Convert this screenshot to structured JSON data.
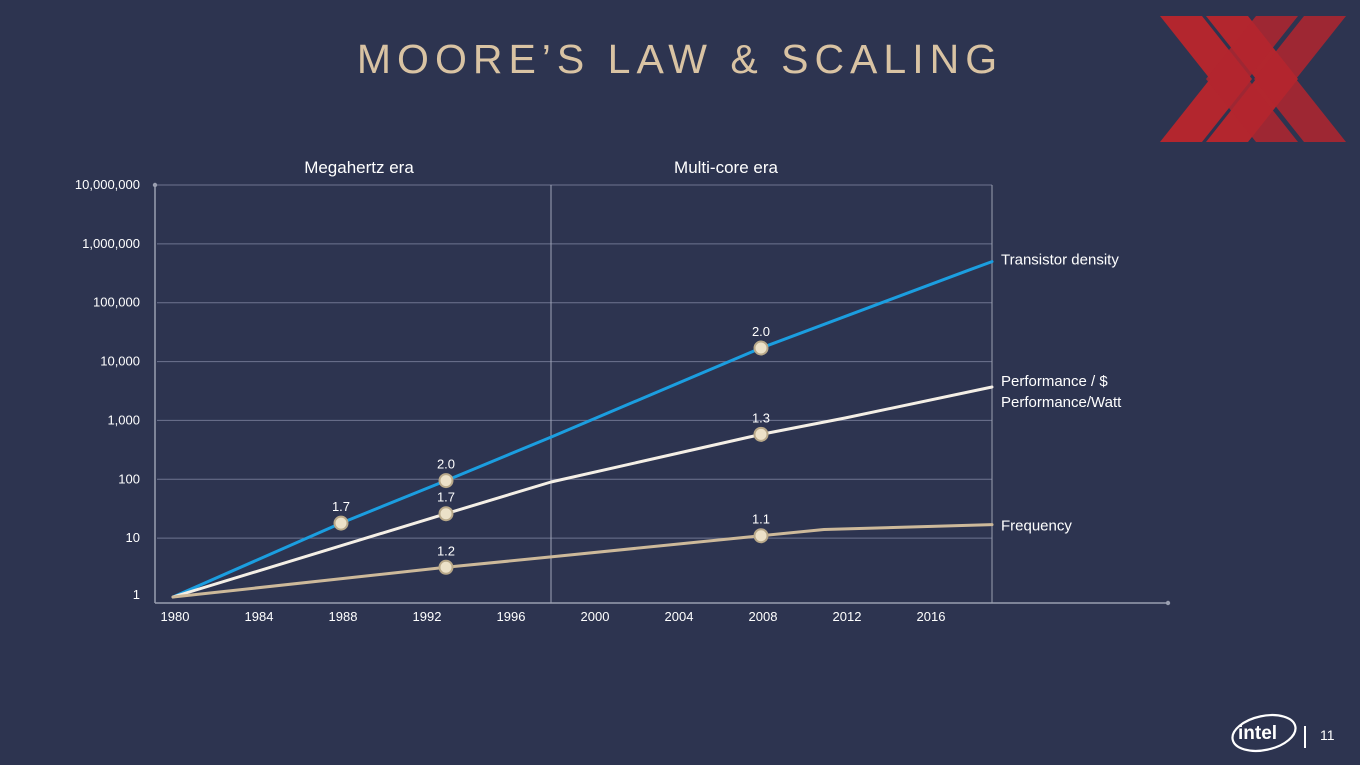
{
  "slide": {
    "title": "MOORE’S LAW & SCALING",
    "page_number": "11",
    "logo_text": "intel"
  },
  "colors": {
    "background": "#2d3450",
    "title": "#d9c3a3",
    "transistor_density": "#1b9ee0",
    "performance": "#f4efe6",
    "frequency": "#cdb99a",
    "grid": "#6e7590",
    "axis": "#9a9fb0",
    "xx_logo": "#b3262e"
  },
  "chart_data": {
    "type": "line",
    "y_scale": "log",
    "ylim": [
      1,
      10000000
    ],
    "xlim": [
      1980,
      2019
    ],
    "y_ticks": [
      {
        "value": 1,
        "label": "1"
      },
      {
        "value": 10,
        "label": "10"
      },
      {
        "value": 100,
        "label": "100"
      },
      {
        "value": 1000,
        "label": "1,000"
      },
      {
        "value": 10000,
        "label": "10,000"
      },
      {
        "value": 100000,
        "label": "100,000"
      },
      {
        "value": 1000000,
        "label": "1,000,000"
      },
      {
        "value": 10000000,
        "label": "10,000,000"
      }
    ],
    "x_ticks": [
      {
        "value": 1980,
        "label": "1980"
      },
      {
        "value": 1984,
        "label": "1984"
      },
      {
        "value": 1988,
        "label": "1988"
      },
      {
        "value": 1992,
        "label": "1992"
      },
      {
        "value": 1996,
        "label": "1996"
      },
      {
        "value": 2000,
        "label": "2000"
      },
      {
        "value": 2004,
        "label": "2004"
      },
      {
        "value": 2008,
        "label": "2008"
      },
      {
        "value": 2012,
        "label": "2012"
      },
      {
        "value": 2016,
        "label": "2016"
      }
    ],
    "eras": [
      {
        "label": "Megahertz era",
        "from": 1980,
        "to": 1998
      },
      {
        "label": "Multi-core era",
        "from": 1998,
        "to": 2019
      }
    ],
    "era_divider": 1998,
    "grid": true,
    "series": [
      {
        "name": "Transistor density",
        "color_key": "transistor_density",
        "points": [
          [
            1980,
            1
          ],
          [
            1988,
            18
          ],
          [
            1993,
            95
          ],
          [
            1998,
            520
          ],
          [
            2008,
            17000
          ],
          [
            2018,
            370000
          ],
          [
            2019,
            500000
          ]
        ],
        "markers": [
          {
            "x": 1988,
            "y": 18,
            "label": "1.7"
          },
          {
            "x": 1993,
            "y": 95,
            "label": "2.0"
          },
          {
            "x": 2008,
            "y": 17000,
            "label": "2.0"
          }
        ]
      },
      {
        "name": "Performance / $",
        "name2": "Performance/Watt",
        "color_key": "performance",
        "points": [
          [
            1980,
            1
          ],
          [
            1993,
            26
          ],
          [
            1998,
            90
          ],
          [
            2008,
            580
          ],
          [
            2012,
            1100
          ],
          [
            2019,
            3700
          ]
        ],
        "markers": [
          {
            "x": 1993,
            "y": 26,
            "label": "1.7"
          },
          {
            "x": 2008,
            "y": 580,
            "label": "1.3"
          }
        ]
      },
      {
        "name": "Frequency",
        "color_key": "frequency",
        "points": [
          [
            1980,
            1
          ],
          [
            1993,
            3.2
          ],
          [
            1998,
            4.8
          ],
          [
            2008,
            11
          ],
          [
            2011,
            14
          ],
          [
            2019,
            17
          ]
        ],
        "markers": [
          {
            "x": 1993,
            "y": 3.2,
            "label": "1.2"
          },
          {
            "x": 2008,
            "y": 11,
            "label": "1.1"
          }
        ]
      }
    ]
  }
}
